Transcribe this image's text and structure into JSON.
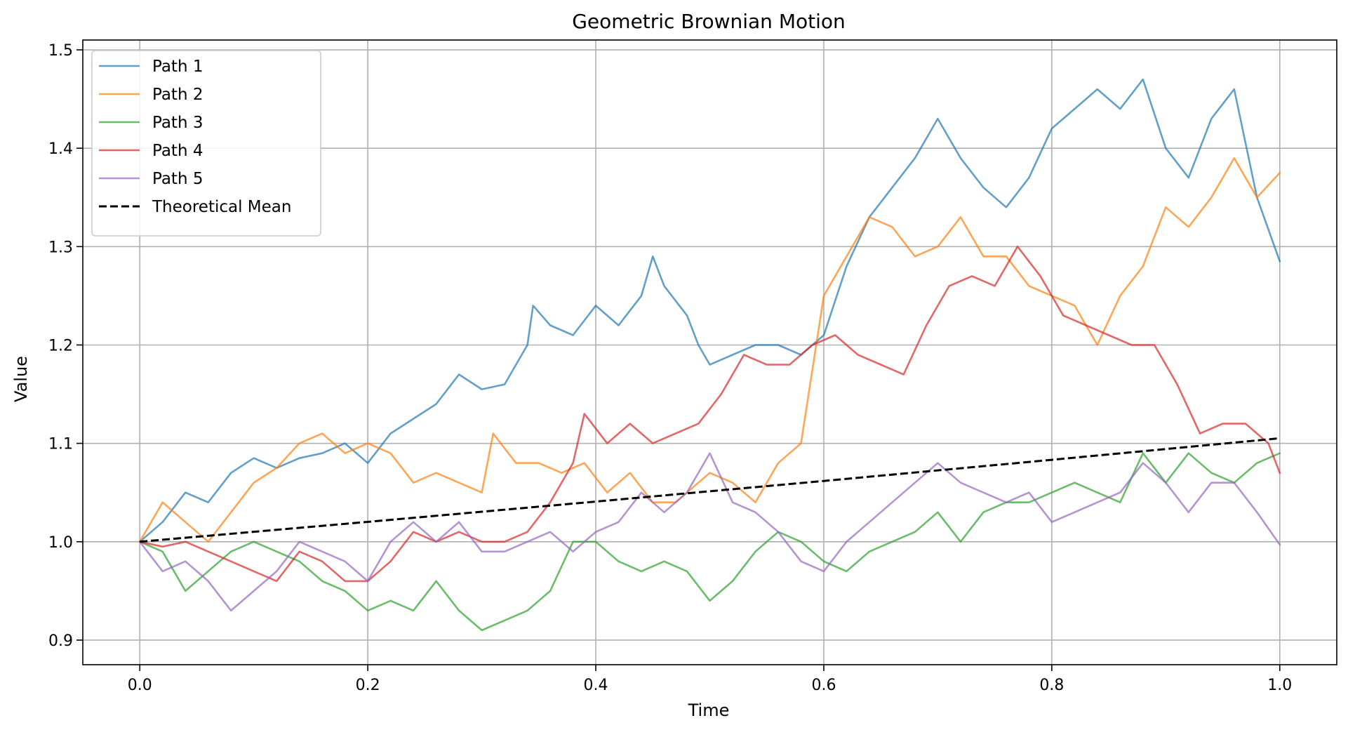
{
  "chart_data": {
    "type": "line",
    "title": "Geometric Brownian Motion",
    "xlabel": "Time",
    "ylabel": "Value",
    "xlim": [
      -0.05,
      1.05
    ],
    "ylim": [
      0.875,
      1.51
    ],
    "grid": true,
    "legend_position": "top-left",
    "x_ticks": [
      {
        "value": 0.0,
        "label": "0.0"
      },
      {
        "value": 0.2,
        "label": "0.2"
      },
      {
        "value": 0.4,
        "label": "0.4"
      },
      {
        "value": 0.6,
        "label": "0.6"
      },
      {
        "value": 0.8,
        "label": "0.8"
      },
      {
        "value": 1.0,
        "label": "1.0"
      }
    ],
    "y_ticks": [
      {
        "value": 0.9,
        "label": "0.9"
      },
      {
        "value": 1.0,
        "label": "1.0"
      },
      {
        "value": 1.1,
        "label": "1.1"
      },
      {
        "value": 1.2,
        "label": "1.2"
      },
      {
        "value": 1.3,
        "label": "1.3"
      },
      {
        "value": 1.4,
        "label": "1.4"
      },
      {
        "value": 1.5,
        "label": "1.5"
      }
    ],
    "series": [
      {
        "name": "Path 1",
        "color": "#1f77b4",
        "dash": "solid",
        "opacity": 0.7,
        "points": [
          [
            0.0,
            1.0
          ],
          [
            0.02,
            1.02
          ],
          [
            0.04,
            1.05
          ],
          [
            0.06,
            1.04
          ],
          [
            0.08,
            1.07
          ],
          [
            0.1,
            1.085
          ],
          [
            0.12,
            1.075
          ],
          [
            0.14,
            1.085
          ],
          [
            0.16,
            1.09
          ],
          [
            0.18,
            1.1
          ],
          [
            0.2,
            1.08
          ],
          [
            0.22,
            1.11
          ],
          [
            0.24,
            1.125
          ],
          [
            0.26,
            1.14
          ],
          [
            0.28,
            1.17
          ],
          [
            0.3,
            1.155
          ],
          [
            0.32,
            1.16
          ],
          [
            0.34,
            1.2
          ],
          [
            0.345,
            1.24
          ],
          [
            0.36,
            1.22
          ],
          [
            0.38,
            1.21
          ],
          [
            0.4,
            1.24
          ],
          [
            0.42,
            1.22
          ],
          [
            0.44,
            1.25
          ],
          [
            0.45,
            1.29
          ],
          [
            0.46,
            1.26
          ],
          [
            0.48,
            1.23
          ],
          [
            0.49,
            1.2
          ],
          [
            0.5,
            1.18
          ],
          [
            0.52,
            1.19
          ],
          [
            0.54,
            1.2
          ],
          [
            0.56,
            1.2
          ],
          [
            0.58,
            1.19
          ],
          [
            0.6,
            1.21
          ],
          [
            0.62,
            1.28
          ],
          [
            0.64,
            1.33
          ],
          [
            0.66,
            1.36
          ],
          [
            0.68,
            1.39
          ],
          [
            0.7,
            1.43
          ],
          [
            0.72,
            1.39
          ],
          [
            0.74,
            1.36
          ],
          [
            0.76,
            1.34
          ],
          [
            0.78,
            1.37
          ],
          [
            0.8,
            1.42
          ],
          [
            0.82,
            1.44
          ],
          [
            0.84,
            1.46
          ],
          [
            0.86,
            1.44
          ],
          [
            0.88,
            1.47
          ],
          [
            0.9,
            1.4
          ],
          [
            0.92,
            1.37
          ],
          [
            0.94,
            1.43
          ],
          [
            0.96,
            1.46
          ],
          [
            0.98,
            1.35
          ],
          [
            1.0,
            1.285
          ]
        ]
      },
      {
        "name": "Path 2",
        "color": "#ff7f0e",
        "dash": "solid",
        "opacity": 0.7,
        "points": [
          [
            0.0,
            1.0
          ],
          [
            0.02,
            1.04
          ],
          [
            0.04,
            1.02
          ],
          [
            0.06,
            1.0
          ],
          [
            0.08,
            1.03
          ],
          [
            0.1,
            1.06
          ],
          [
            0.12,
            1.075
          ],
          [
            0.14,
            1.1
          ],
          [
            0.16,
            1.11
          ],
          [
            0.18,
            1.09
          ],
          [
            0.2,
            1.1
          ],
          [
            0.22,
            1.09
          ],
          [
            0.24,
            1.06
          ],
          [
            0.26,
            1.07
          ],
          [
            0.28,
            1.06
          ],
          [
            0.3,
            1.05
          ],
          [
            0.31,
            1.11
          ],
          [
            0.33,
            1.08
          ],
          [
            0.35,
            1.08
          ],
          [
            0.37,
            1.07
          ],
          [
            0.39,
            1.08
          ],
          [
            0.41,
            1.05
          ],
          [
            0.43,
            1.07
          ],
          [
            0.45,
            1.04
          ],
          [
            0.47,
            1.04
          ],
          [
            0.5,
            1.07
          ],
          [
            0.52,
            1.06
          ],
          [
            0.54,
            1.04
          ],
          [
            0.56,
            1.08
          ],
          [
            0.58,
            1.1
          ],
          [
            0.6,
            1.25
          ],
          [
            0.62,
            1.29
          ],
          [
            0.64,
            1.33
          ],
          [
            0.66,
            1.32
          ],
          [
            0.68,
            1.29
          ],
          [
            0.7,
            1.3
          ],
          [
            0.72,
            1.33
          ],
          [
            0.74,
            1.29
          ],
          [
            0.76,
            1.29
          ],
          [
            0.78,
            1.26
          ],
          [
            0.8,
            1.25
          ],
          [
            0.82,
            1.24
          ],
          [
            0.84,
            1.2
          ],
          [
            0.86,
            1.25
          ],
          [
            0.88,
            1.28
          ],
          [
            0.9,
            1.34
          ],
          [
            0.92,
            1.32
          ],
          [
            0.94,
            1.35
          ],
          [
            0.96,
            1.39
          ],
          [
            0.98,
            1.35
          ],
          [
            1.0,
            1.375
          ]
        ]
      },
      {
        "name": "Path 3",
        "color": "#2ca02c",
        "dash": "solid",
        "opacity": 0.7,
        "points": [
          [
            0.0,
            1.0
          ],
          [
            0.02,
            0.99
          ],
          [
            0.04,
            0.95
          ],
          [
            0.06,
            0.97
          ],
          [
            0.08,
            0.99
          ],
          [
            0.1,
            1.0
          ],
          [
            0.12,
            0.99
          ],
          [
            0.14,
            0.98
          ],
          [
            0.16,
            0.96
          ],
          [
            0.18,
            0.95
          ],
          [
            0.2,
            0.93
          ],
          [
            0.22,
            0.94
          ],
          [
            0.24,
            0.93
          ],
          [
            0.26,
            0.96
          ],
          [
            0.28,
            0.93
          ],
          [
            0.3,
            0.91
          ],
          [
            0.32,
            0.92
          ],
          [
            0.34,
            0.93
          ],
          [
            0.36,
            0.95
          ],
          [
            0.38,
            1.0
          ],
          [
            0.4,
            1.0
          ],
          [
            0.42,
            0.98
          ],
          [
            0.44,
            0.97
          ],
          [
            0.46,
            0.98
          ],
          [
            0.48,
            0.97
          ],
          [
            0.5,
            0.94
          ],
          [
            0.52,
            0.96
          ],
          [
            0.54,
            0.99
          ],
          [
            0.56,
            1.01
          ],
          [
            0.58,
            1.0
          ],
          [
            0.6,
            0.98
          ],
          [
            0.62,
            0.97
          ],
          [
            0.64,
            0.99
          ],
          [
            0.66,
            1.0
          ],
          [
            0.68,
            1.01
          ],
          [
            0.7,
            1.03
          ],
          [
            0.72,
            1.0
          ],
          [
            0.74,
            1.03
          ],
          [
            0.76,
            1.04
          ],
          [
            0.78,
            1.04
          ],
          [
            0.8,
            1.05
          ],
          [
            0.82,
            1.06
          ],
          [
            0.84,
            1.05
          ],
          [
            0.86,
            1.04
          ],
          [
            0.88,
            1.09
          ],
          [
            0.9,
            1.06
          ],
          [
            0.92,
            1.09
          ],
          [
            0.94,
            1.07
          ],
          [
            0.96,
            1.06
          ],
          [
            0.98,
            1.08
          ],
          [
            1.0,
            1.09
          ]
        ]
      },
      {
        "name": "Path 4",
        "color": "#d62728",
        "dash": "solid",
        "opacity": 0.7,
        "points": [
          [
            0.0,
            1.0
          ],
          [
            0.02,
            0.995
          ],
          [
            0.04,
            1.0
          ],
          [
            0.06,
            0.99
          ],
          [
            0.08,
            0.98
          ],
          [
            0.1,
            0.97
          ],
          [
            0.12,
            0.96
          ],
          [
            0.14,
            0.99
          ],
          [
            0.16,
            0.98
          ],
          [
            0.18,
            0.96
          ],
          [
            0.2,
            0.96
          ],
          [
            0.22,
            0.98
          ],
          [
            0.24,
            1.01
          ],
          [
            0.26,
            1.0
          ],
          [
            0.28,
            1.01
          ],
          [
            0.3,
            1.0
          ],
          [
            0.32,
            1.0
          ],
          [
            0.34,
            1.01
          ],
          [
            0.36,
            1.04
          ],
          [
            0.38,
            1.08
          ],
          [
            0.39,
            1.13
          ],
          [
            0.41,
            1.1
          ],
          [
            0.43,
            1.12
          ],
          [
            0.45,
            1.1
          ],
          [
            0.47,
            1.11
          ],
          [
            0.49,
            1.12
          ],
          [
            0.51,
            1.15
          ],
          [
            0.53,
            1.19
          ],
          [
            0.55,
            1.18
          ],
          [
            0.57,
            1.18
          ],
          [
            0.59,
            1.2
          ],
          [
            0.61,
            1.21
          ],
          [
            0.63,
            1.19
          ],
          [
            0.65,
            1.18
          ],
          [
            0.67,
            1.17
          ],
          [
            0.69,
            1.22
          ],
          [
            0.71,
            1.26
          ],
          [
            0.73,
            1.27
          ],
          [
            0.75,
            1.26
          ],
          [
            0.77,
            1.3
          ],
          [
            0.79,
            1.27
          ],
          [
            0.81,
            1.23
          ],
          [
            0.83,
            1.22
          ],
          [
            0.85,
            1.21
          ],
          [
            0.87,
            1.2
          ],
          [
            0.89,
            1.2
          ],
          [
            0.91,
            1.16
          ],
          [
            0.93,
            1.11
          ],
          [
            0.95,
            1.12
          ],
          [
            0.97,
            1.12
          ],
          [
            0.99,
            1.1
          ],
          [
            1.0,
            1.07
          ]
        ]
      },
      {
        "name": "Path 5",
        "color": "#9467bd",
        "dash": "solid",
        "opacity": 0.7,
        "points": [
          [
            0.0,
            1.0
          ],
          [
            0.02,
            0.97
          ],
          [
            0.04,
            0.98
          ],
          [
            0.06,
            0.96
          ],
          [
            0.08,
            0.93
          ],
          [
            0.1,
            0.95
          ],
          [
            0.12,
            0.97
          ],
          [
            0.14,
            1.0
          ],
          [
            0.16,
            0.99
          ],
          [
            0.18,
            0.98
          ],
          [
            0.2,
            0.96
          ],
          [
            0.22,
            1.0
          ],
          [
            0.24,
            1.02
          ],
          [
            0.26,
            1.0
          ],
          [
            0.28,
            1.02
          ],
          [
            0.3,
            0.99
          ],
          [
            0.32,
            0.99
          ],
          [
            0.34,
            1.0
          ],
          [
            0.36,
            1.01
          ],
          [
            0.38,
            0.99
          ],
          [
            0.4,
            1.01
          ],
          [
            0.42,
            1.02
          ],
          [
            0.44,
            1.05
          ],
          [
            0.46,
            1.03
          ],
          [
            0.48,
            1.05
          ],
          [
            0.5,
            1.09
          ],
          [
            0.52,
            1.04
          ],
          [
            0.54,
            1.03
          ],
          [
            0.56,
            1.01
          ],
          [
            0.58,
            0.98
          ],
          [
            0.6,
            0.97
          ],
          [
            0.62,
            1.0
          ],
          [
            0.64,
            1.02
          ],
          [
            0.66,
            1.04
          ],
          [
            0.68,
            1.06
          ],
          [
            0.7,
            1.08
          ],
          [
            0.72,
            1.06
          ],
          [
            0.74,
            1.05
          ],
          [
            0.76,
            1.04
          ],
          [
            0.78,
            1.05
          ],
          [
            0.8,
            1.02
          ],
          [
            0.82,
            1.03
          ],
          [
            0.84,
            1.04
          ],
          [
            0.86,
            1.05
          ],
          [
            0.88,
            1.08
          ],
          [
            0.9,
            1.06
          ],
          [
            0.92,
            1.03
          ],
          [
            0.94,
            1.06
          ],
          [
            0.96,
            1.06
          ],
          [
            0.98,
            1.03
          ],
          [
            1.0,
            0.997
          ]
        ]
      },
      {
        "name": "Theoretical Mean",
        "color": "#000000",
        "dash": "dashed",
        "opacity": 1.0,
        "points": [
          [
            0.0,
            1.0
          ],
          [
            0.2,
            1.0202
          ],
          [
            0.4,
            1.0408
          ],
          [
            0.6,
            1.0618
          ],
          [
            0.8,
            1.0833
          ],
          [
            1.0,
            1.1052
          ]
        ]
      }
    ]
  }
}
